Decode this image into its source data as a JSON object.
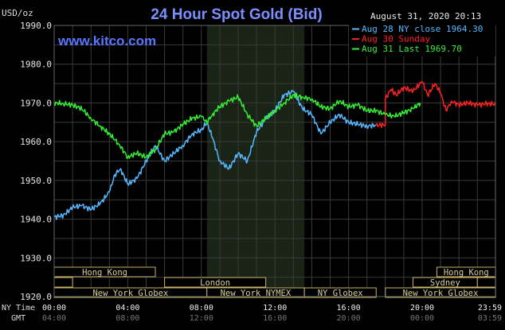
{
  "chart_data": {
    "type": "line",
    "title": "24 Hour Spot Gold (Bid)",
    "site": "www.kitco.com",
    "timestamp": "August 31, 2020 20:13",
    "ylabel": "USD/oz",
    "ylim": [
      1920,
      1990
    ],
    "y_ticks": [
      "1920.0",
      "1930.0",
      "1940.0",
      "1950.0",
      "1960.0",
      "1970.0",
      "1980.0",
      "1990.0"
    ],
    "x_time_labels": {
      "ny_label": "NY Time",
      "gmt_label": "GMT",
      "ny": [
        "00:00",
        "04:00",
        "08:00",
        "12:00",
        "16:00",
        "20:00",
        "23:59"
      ],
      "gmt": [
        "04:00",
        "08:00",
        "12:00",
        "16:00",
        "20:00",
        "00:00",
        "03:59"
      ]
    },
    "grid": true,
    "legend_position": "top-right",
    "legend": [
      {
        "label": "Aug 28 NY close 1964.30",
        "color": "#55b8ff"
      },
      {
        "label": "Aug 30 Sunday",
        "color": "#ff2020"
      },
      {
        "label": "Aug 31 Last 1969.70",
        "color": "#33ee33"
      }
    ],
    "highlight_hours": [
      8.3,
      13.6
    ],
    "series": [
      {
        "name": "Aug 28 NY close 1964.30",
        "color": "#55b8ff",
        "x": [
          0,
          0.5,
          1,
          1.5,
          2,
          2.5,
          3,
          3.3,
          3.6,
          4,
          4.5,
          5,
          5.5,
          6,
          6.5,
          7,
          7.5,
          8,
          8.3,
          8.6,
          9,
          9.5,
          10,
          10.5,
          11,
          11.5,
          12,
          12.5,
          13,
          13.5,
          14,
          14.5,
          15,
          15.5,
          16,
          16.5,
          17,
          17.5
        ],
        "values": [
          1940.5,
          1941.0,
          1943.0,
          1943.5,
          1942.5,
          1944.0,
          1947.0,
          1951.5,
          1953.0,
          1949.0,
          1950.5,
          1955.0,
          1959.0,
          1955.0,
          1957.0,
          1959.0,
          1962.0,
          1963.0,
          1965.0,
          1961.0,
          1955.0,
          1953.0,
          1957.0,
          1955.0,
          1962.5,
          1966.0,
          1968.0,
          1972.0,
          1973.0,
          1968.5,
          1967.0,
          1962.0,
          1965.0,
          1967.0,
          1965.0,
          1964.5,
          1964.0,
          1964.3
        ]
      },
      {
        "name": "Aug 30 Sunday",
        "color": "#ff2020",
        "x": [
          17.5,
          18.0,
          18.0,
          18.3,
          18.6,
          19.0,
          19.5,
          20.0,
          20.3,
          20.7,
          21.0,
          21.3,
          21.6,
          22.0,
          22.5,
          23.0,
          23.5,
          23.99
        ],
        "values": [
          1964.3,
          1964.3,
          1971.0,
          1973.5,
          1972.0,
          1974.0,
          1973.0,
          1975.5,
          1972.0,
          1975.0,
          1972.5,
          1968.0,
          1970.5,
          1969.5,
          1970.0,
          1969.5,
          1969.8,
          1969.7
        ]
      },
      {
        "name": "Aug 31 Last 1969.70",
        "color": "#33ee33",
        "x": [
          0,
          0.5,
          1,
          1.5,
          2,
          2.5,
          3,
          3.5,
          4,
          4.5,
          5,
          5.5,
          6,
          6.5,
          7,
          7.5,
          8,
          8.3,
          8.6,
          9,
          9.5,
          10,
          10.5,
          11,
          11.5,
          12,
          12.5,
          13,
          13.5,
          14,
          14.5,
          15,
          15.5,
          16,
          16.5,
          17,
          17.5,
          18,
          18.5,
          19,
          19.5,
          19.9
        ],
        "values": [
          1970.0,
          1969.8,
          1969.5,
          1968.5,
          1966.0,
          1964.0,
          1962.0,
          1959.5,
          1956.0,
          1957.0,
          1956.0,
          1958.0,
          1962.0,
          1962.5,
          1964.5,
          1966.0,
          1966.5,
          1965.0,
          1967.0,
          1969.0,
          1970.5,
          1971.5,
          1967.0,
          1964.0,
          1966.0,
          1968.0,
          1970.0,
          1972.0,
          1971.5,
          1971.0,
          1969.0,
          1968.5,
          1970.5,
          1969.0,
          1969.5,
          1968.0,
          1968.0,
          1967.0,
          1966.5,
          1967.5,
          1968.5,
          1970.0
        ]
      }
    ],
    "sessions": [
      {
        "label": "Hong Kong",
        "start": 0,
        "end": 5.5,
        "row": 0
      },
      {
        "label": "London",
        "start": 0,
        "end": 1.0,
        "row": 1
      },
      {
        "label": "London",
        "start": 6.0,
        "end": 11.5,
        "row": 1
      },
      {
        "label": "New York Globex",
        "start": 0,
        "end": 8.3,
        "row": 2
      },
      {
        "label": "New York NYMEX",
        "start": 8.3,
        "end": 13.6,
        "row": 2
      },
      {
        "label": "NY Globex",
        "start": 13.6,
        "end": 17.5,
        "row": 2
      },
      {
        "label": "Hong Kong",
        "start": 20.8,
        "end": 23.99,
        "row": 0
      },
      {
        "label": "Sydney",
        "start": 19.5,
        "end": 23.0,
        "row": 1
      },
      {
        "label": "London",
        "start": 23.0,
        "end": 23.99,
        "row": 1
      },
      {
        "label": "New York Globex",
        "start": 18.0,
        "end": 23.99,
        "row": 2
      }
    ]
  }
}
